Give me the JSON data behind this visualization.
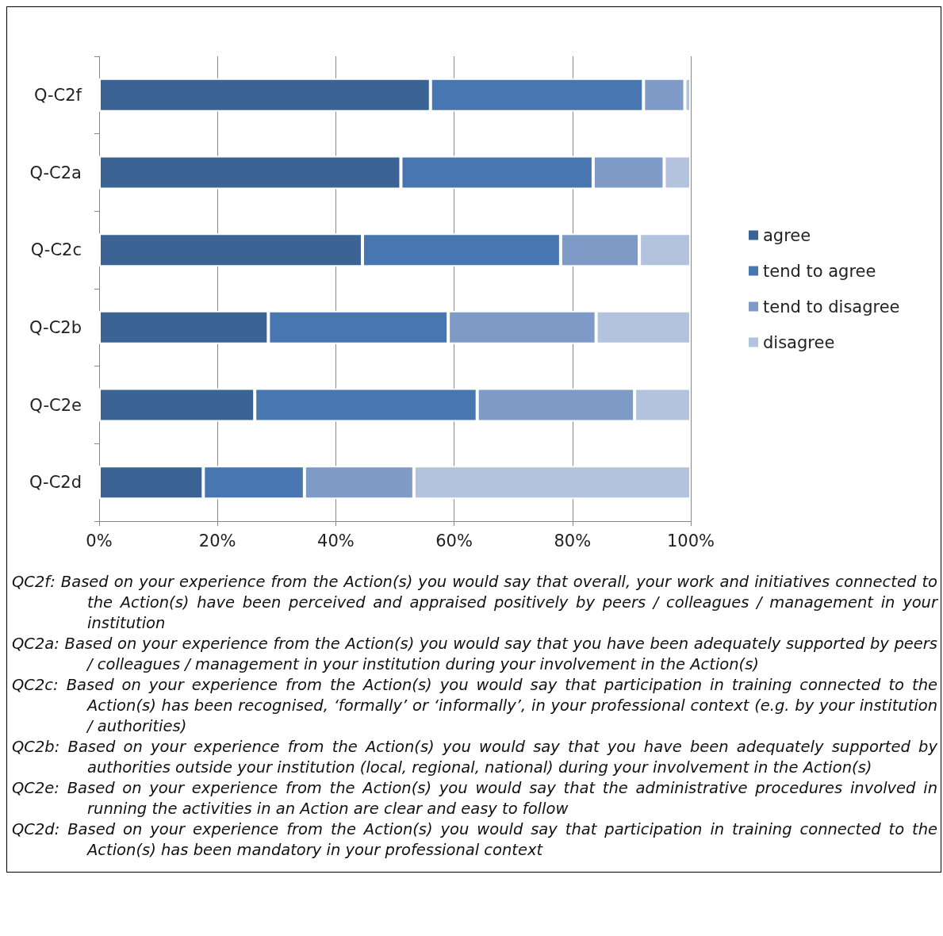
{
  "chart_data": {
    "type": "bar",
    "orientation": "horizontal",
    "stacked": true,
    "categories": [
      "Q-C2f",
      "Q-C2a",
      "Q-C2c",
      "Q-C2b",
      "Q-C2e",
      "Q-C2d"
    ],
    "series": [
      {
        "name": "agree",
        "color": "#3b6494",
        "values": [
          56,
          51,
          44.5,
          28.6,
          26.3,
          17.6
        ]
      },
      {
        "name": "tend to agree",
        "color": "#4876b0",
        "values": [
          36,
          32.5,
          33.5,
          30.4,
          37.6,
          17.1
        ]
      },
      {
        "name": "tend to disagree",
        "color": "#7e9bc8",
        "values": [
          7,
          12,
          13.3,
          25,
          26.6,
          18.5
        ]
      },
      {
        "name": "disagree",
        "color": "#b3c2dd",
        "values": [
          1,
          4.5,
          8.7,
          16,
          9.5,
          46.8
        ]
      }
    ],
    "xlim": [
      0,
      100
    ],
    "xticks": [
      {
        "value": 0,
        "label": "0%"
      },
      {
        "value": 20,
        "label": "20%"
      },
      {
        "value": 40,
        "label": "40%"
      },
      {
        "value": 60,
        "label": "60%"
      },
      {
        "value": 80,
        "label": "80%"
      },
      {
        "value": 100,
        "label": "100%"
      }
    ],
    "grid": "x",
    "legend": "right",
    "annotations": [
      "QC2f: Based on your experience from the Action(s) you would say that overall, your work and initiatives connected to the Action(s) have been perceived and appraised positively by peers / colleagues / management in your institution",
      "QC2a: Based on your experience from the Action(s) you would say that you have been adequately supported by peers / colleagues / management in your institution during your involvement in the Action(s)",
      "QC2c: Based on your experience from the Action(s) you would say that participation in training connected to the Action(s) has been recognised, ‘formally’ or ‘informally’, in your professional context (e.g. by your institution / authorities)",
      "QC2b: Based on your experience from the Action(s) you would say that you have been adequately supported by authorities outside your institution (local, regional, national) during your involvement in the Action(s)",
      "QC2e: Based on your experience from the Action(s) you would say that the administrative procedures involved in running the activities in an Action are clear and easy to follow",
      "QC2d: Based on your experience from the Action(s) you would say that participation in training connected to the Action(s) has been mandatory in your professional context"
    ]
  }
}
